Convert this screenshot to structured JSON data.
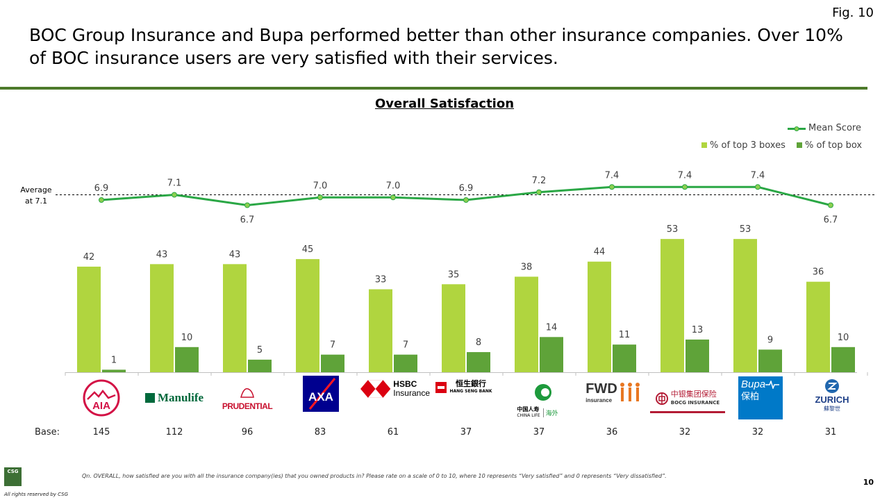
{
  "fig_label": "Fig. 10",
  "headline": "BOC Group Insurance and Bupa performed better than other insurance companies. Over 10% of BOC insurance users are very satisfied with their services.",
  "chart_title": "Overall Satisfaction",
  "average_label_line1": "Average",
  "average_label_line2": "at 7.1",
  "base_label": "Base:",
  "footnote": "Qn. OVERALL, how satisfied are you with all the insurance company(ies) that you owned products in? Please rate on a scale of 0 to 10, where 10 represents “Very satisfied” and 0 represents “Very dissatisfied”.",
  "page_number": "10",
  "rights": "All rights reserved by CSG",
  "csg_logo_text": "CSG",
  "colors": {
    "light_green": "#b0d53f",
    "dark_green": "#5fa339",
    "line_green": "#2aa745",
    "rule": "#4d7a2a"
  },
  "logos": {
    "aia": "AIA",
    "manulife": "Manulife",
    "prudential": "PRUDENTIAL",
    "axa": "AXA",
    "hsbc_line1": "HSBC",
    "hsbc_line2": "Insurance",
    "hang_seng_line1": "恒生銀行",
    "hang_seng_line2": "HANG SENG BANK",
    "china_life_line1": "中国人寿",
    "china_life_line2": "CHINA LIFE",
    "china_life_line3": "海外",
    "fwd_line1": "FWD",
    "fwd_line2": "insurance",
    "bocg_line1": "中银集团保险",
    "bocg_line2": "BOCG INSURANCE",
    "bupa_line1": "Bupa",
    "bupa_line2": "保柏",
    "zurich_line1": "ZURICH",
    "zurich_line2": "蘇黎世"
  },
  "chart_data": {
    "type": "bar",
    "title": "Overall Satisfaction",
    "categories": [
      "AIA",
      "Manulife",
      "Prudential",
      "AXA",
      "HSBC Insurance",
      "Hang Seng Bank",
      "China Life",
      "FWD",
      "BOCG Insurance",
      "Bupa",
      "Zurich"
    ],
    "series": [
      {
        "name": "% of top 3 boxes",
        "type": "bar",
        "values": [
          42,
          43,
          43,
          45,
          33,
          35,
          38,
          44,
          53,
          53,
          36
        ]
      },
      {
        "name": "% of top box",
        "type": "bar",
        "values": [
          1,
          10,
          5,
          7,
          7,
          8,
          14,
          11,
          13,
          9,
          10
        ]
      },
      {
        "name": "Mean Score",
        "type": "line",
        "values": [
          "6.9",
          "7.1",
          "6.7",
          "7.0",
          "7.0",
          "6.9",
          "7.2",
          "7.4",
          "7.4",
          "7.4",
          "6.7"
        ]
      }
    ],
    "average": 7.1,
    "base": [
      145,
      112,
      96,
      83,
      61,
      37,
      37,
      36,
      32,
      32,
      31
    ],
    "legend_position": "top-right",
    "grid": false
  }
}
